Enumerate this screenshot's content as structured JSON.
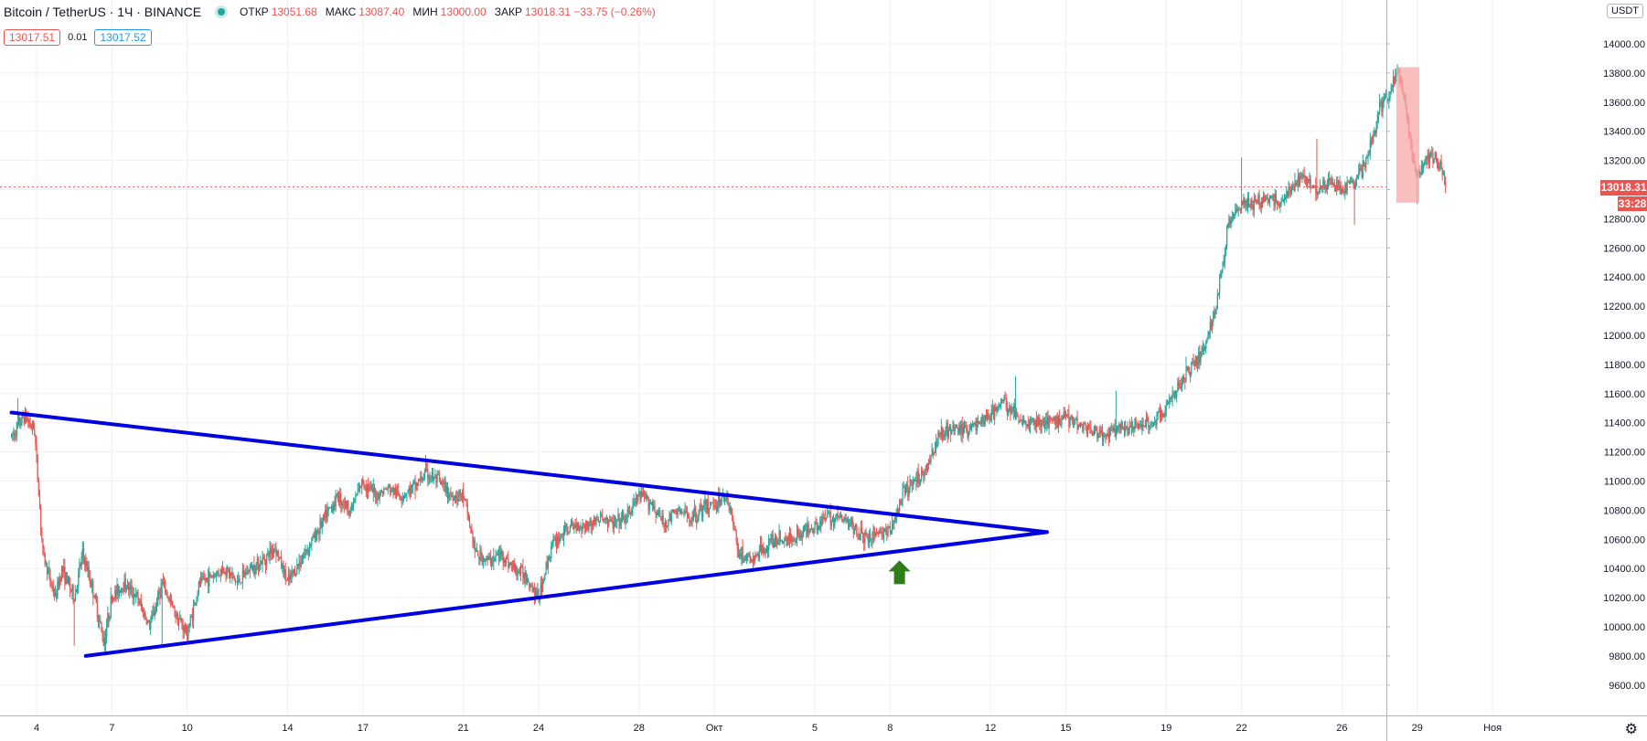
{
  "header": {
    "symbol": "Bitcoin / TetherUS · 1Ч · BINANCE",
    "open_label": "ОТКР",
    "open_value": "13051.68",
    "high_label": "МАКС",
    "high_value": "13087.40",
    "low_label": "МИН",
    "low_value": "13000.00",
    "close_label": "ЗАКР",
    "close_value": "13018.31 −33.75 (−0.26%)"
  },
  "bidask": {
    "bid": "13017.51",
    "spread": "0.01",
    "ask": "13017.52"
  },
  "price_axis": {
    "currency": "USDT",
    "current_price": "13018.31",
    "countdown": "33:28"
  },
  "colors": {
    "up": "#26a69a",
    "down": "#ef5350",
    "trendline": "#0000e0",
    "arrow": "#2e7d1a",
    "highlight": "#f7a9a9",
    "grid": "#eef0f3"
  },
  "chart_data": {
    "type": "candlestick",
    "ylim": [
      9410,
      14260
    ],
    "yticks": [
      9600,
      9800,
      10000,
      10200,
      10400,
      10600,
      10800,
      11000,
      11200,
      11400,
      11600,
      11800,
      12000,
      12200,
      12400,
      12600,
      12800,
      13000,
      13200,
      13400,
      13600,
      13800,
      14000
    ],
    "x_ticks": [
      {
        "label": "4",
        "date": "2020-09-04"
      },
      {
        "label": "7",
        "date": "2020-09-07"
      },
      {
        "label": "10",
        "date": "2020-09-10"
      },
      {
        "label": "14",
        "date": "2020-09-14"
      },
      {
        "label": "17",
        "date": "2020-09-17"
      },
      {
        "label": "21",
        "date": "2020-09-21"
      },
      {
        "label": "24",
        "date": "2020-09-24"
      },
      {
        "label": "28",
        "date": "2020-09-28"
      },
      {
        "label": "Окт",
        "date": "2020-10-01"
      },
      {
        "label": "5",
        "date": "2020-10-05"
      },
      {
        "label": "8",
        "date": "2020-10-08"
      },
      {
        "label": "12",
        "date": "2020-10-12"
      },
      {
        "label": "15",
        "date": "2020-10-15"
      },
      {
        "label": "19",
        "date": "2020-10-19"
      },
      {
        "label": "22",
        "date": "2020-10-22"
      },
      {
        "label": "26",
        "date": "2020-10-26"
      },
      {
        "label": "29",
        "date": "2020-10-29"
      },
      {
        "label": "Ноя",
        "date": "2020-11-01"
      }
    ],
    "price_path": [
      [
        "2020-09-03 00:00",
        11300
      ],
      [
        "2020-09-03 12:00",
        11450
      ],
      [
        "2020-09-03 22:00",
        11350
      ],
      [
        "2020-09-04 06:00",
        10500
      ],
      [
        "2020-09-04 18:00",
        10200
      ],
      [
        "2020-09-05 00:00",
        10400
      ],
      [
        "2020-09-05 12:00",
        10200
      ],
      [
        "2020-09-05 20:00",
        10500
      ],
      [
        "2020-09-06 06:00",
        10250
      ],
      [
        "2020-09-06 16:00",
        9900
      ],
      [
        "2020-09-07 00:00",
        10200
      ],
      [
        "2020-09-07 12:00",
        10300
      ],
      [
        "2020-09-08 00:00",
        10200
      ],
      [
        "2020-09-08 12:00",
        10000
      ],
      [
        "2020-09-09 00:00",
        10300
      ],
      [
        "2020-09-09 12:00",
        10100
      ],
      [
        "2020-09-10 00:00",
        9950
      ],
      [
        "2020-09-10 12:00",
        10300
      ],
      [
        "2020-09-11 00:00",
        10350
      ],
      [
        "2020-09-11 12:00",
        10400
      ],
      [
        "2020-09-12 00:00",
        10300
      ],
      [
        "2020-09-12 12:00",
        10400
      ],
      [
        "2020-09-13 00:00",
        10450
      ],
      [
        "2020-09-13 12:00",
        10550
      ],
      [
        "2020-09-14 00:00",
        10300
      ],
      [
        "2020-09-14 12:00",
        10450
      ],
      [
        "2020-09-15 00:00",
        10600
      ],
      [
        "2020-09-15 12:00",
        10750
      ],
      [
        "2020-09-16 00:00",
        10900
      ],
      [
        "2020-09-16 12:00",
        10800
      ],
      [
        "2020-09-17 00:00",
        11000
      ],
      [
        "2020-09-17 12:00",
        10900
      ],
      [
        "2020-09-18 00:00",
        10950
      ],
      [
        "2020-09-18 12:00",
        10900
      ],
      [
        "2020-09-19 00:00",
        10950
      ],
      [
        "2020-09-19 12:00",
        11050
      ],
      [
        "2020-09-20 00:00",
        11000
      ],
      [
        "2020-09-20 12:00",
        10900
      ],
      [
        "2020-09-21 00:00",
        10900
      ],
      [
        "2020-09-21 12:00",
        10500
      ],
      [
        "2020-09-22 00:00",
        10450
      ],
      [
        "2020-09-22 12:00",
        10500
      ],
      [
        "2020-09-23 00:00",
        10400
      ],
      [
        "2020-09-23 12:00",
        10350
      ],
      [
        "2020-09-24 00:00",
        10200
      ],
      [
        "2020-09-24 12:00",
        10550
      ],
      [
        "2020-09-25 00:00",
        10650
      ],
      [
        "2020-09-25 12:00",
        10700
      ],
      [
        "2020-09-26 00:00",
        10700
      ],
      [
        "2020-09-26 12:00",
        10750
      ],
      [
        "2020-09-27 00:00",
        10700
      ],
      [
        "2020-09-27 12:00",
        10750
      ],
      [
        "2020-09-28 00:00",
        10900
      ],
      [
        "2020-09-28 12:00",
        10850
      ],
      [
        "2020-09-29 00:00",
        10700
      ],
      [
        "2020-09-29 12:00",
        10800
      ],
      [
        "2020-09-30 00:00",
        10750
      ],
      [
        "2020-09-30 12:00",
        10800
      ],
      [
        "2020-10-01 00:00",
        10850
      ],
      [
        "2020-10-01 12:00",
        10900
      ],
      [
        "2020-10-02 00:00",
        10500
      ],
      [
        "2020-10-02 12:00",
        10450
      ],
      [
        "2020-10-03 00:00",
        10550
      ],
      [
        "2020-10-03 12:00",
        10600
      ],
      [
        "2020-10-04 00:00",
        10600
      ],
      [
        "2020-10-04 12:00",
        10650
      ],
      [
        "2020-10-05 00:00",
        10700
      ],
      [
        "2020-10-05 12:00",
        10750
      ],
      [
        "2020-10-06 00:00",
        10750
      ],
      [
        "2020-10-06 12:00",
        10700
      ],
      [
        "2020-10-07 00:00",
        10600
      ],
      [
        "2020-10-07 12:00",
        10650
      ],
      [
        "2020-10-08 00:00",
        10650
      ],
      [
        "2020-10-08 12:00",
        10900
      ],
      [
        "2020-10-09 00:00",
        11000
      ],
      [
        "2020-10-09 12:00",
        11100
      ],
      [
        "2020-10-10 00:00",
        11350
      ],
      [
        "2020-10-10 12:00",
        11350
      ],
      [
        "2020-10-11 00:00",
        11350
      ],
      [
        "2020-10-11 12:00",
        11400
      ],
      [
        "2020-10-12 00:00",
        11450
      ],
      [
        "2020-10-12 12:00",
        11550
      ],
      [
        "2020-10-13 00:00",
        11450
      ],
      [
        "2020-10-13 12:00",
        11400
      ],
      [
        "2020-10-14 00:00",
        11400
      ],
      [
        "2020-10-14 12:00",
        11400
      ],
      [
        "2020-10-15 00:00",
        11450
      ],
      [
        "2020-10-15 12:00",
        11400
      ],
      [
        "2020-10-16 00:00",
        11350
      ],
      [
        "2020-10-16 12:00",
        11300
      ],
      [
        "2020-10-17 00:00",
        11350
      ],
      [
        "2020-10-17 12:00",
        11350
      ],
      [
        "2020-10-18 00:00",
        11400
      ],
      [
        "2020-10-18 12:00",
        11400
      ],
      [
        "2020-10-19 00:00",
        11500
      ],
      [
        "2020-10-19 12:00",
        11650
      ],
      [
        "2020-10-20 00:00",
        11800
      ],
      [
        "2020-10-20 12:00",
        11900
      ],
      [
        "2020-10-21 00:00",
        12200
      ],
      [
        "2020-10-21 12:00",
        12800
      ],
      [
        "2020-10-22 00:00",
        12900
      ],
      [
        "2020-10-22 12:00",
        12900
      ],
      [
        "2020-10-23 00:00",
        12950
      ],
      [
        "2020-10-23 12:00",
        12900
      ],
      [
        "2020-10-24 00:00",
        13000
      ],
      [
        "2020-10-24 12:00",
        13100
      ],
      [
        "2020-10-25 00:00",
        13000
      ],
      [
        "2020-10-25 12:00",
        13050
      ],
      [
        "2020-10-26 00:00",
        13000
      ],
      [
        "2020-10-26 12:00",
        13050
      ],
      [
        "2020-10-27 00:00",
        13200
      ],
      [
        "2020-10-27 12:00",
        13550
      ],
      [
        "2020-10-28 00:00",
        13700
      ],
      [
        "2020-10-28 06:00",
        13800
      ],
      [
        "2020-10-28 12:00",
        13600
      ],
      [
        "2020-10-28 20:00",
        13200
      ],
      [
        "2020-10-29 00:00",
        13100
      ],
      [
        "2020-10-29 12:00",
        13250
      ],
      [
        "2020-10-30 00:00",
        13150
      ],
      [
        "2020-10-30 03:00",
        13018
      ]
    ],
    "extremes": [
      {
        "date": "2020-09-03 06:00",
        "high": 11570
      },
      {
        "date": "2020-09-05 12:00",
        "low": 9870
      },
      {
        "date": "2020-09-06 18:00",
        "low": 9820
      },
      {
        "date": "2020-09-09 00:00",
        "low": 9860
      },
      {
        "date": "2020-09-19 12:00",
        "high": 11180
      },
      {
        "date": "2020-09-23 20:00",
        "low": 10150
      },
      {
        "date": "2020-10-13 00:00",
        "high": 11720
      },
      {
        "date": "2020-10-17 00:00",
        "high": 11620
      },
      {
        "date": "2020-10-22 00:00",
        "high": 13220
      },
      {
        "date": "2020-10-25 00:00",
        "high": 13350
      },
      {
        "date": "2020-10-26 12:00",
        "low": 12760
      },
      {
        "date": "2020-10-28 05:00",
        "high": 13860
      },
      {
        "date": "2020-10-29 00:00",
        "low": 12900
      }
    ],
    "annotations": {
      "triangle_upper": [
        [
          "2020-09-03 00:00",
          11470
        ],
        [
          "2020-10-14 06:00",
          10650
        ]
      ],
      "triangle_lower": [
        [
          "2020-09-05 23:00",
          9800
        ],
        [
          "2020-10-14 06:00",
          10650
        ]
      ],
      "breakout_arrow": {
        "date": "2020-10-08 09:00",
        "price": 10380
      },
      "highlight_box": {
        "from": "2020-10-28 04:00",
        "to": "2020-10-29 02:00",
        "top": 13840,
        "bottom": 12910
      },
      "current_price_line": 13018.31
    }
  }
}
